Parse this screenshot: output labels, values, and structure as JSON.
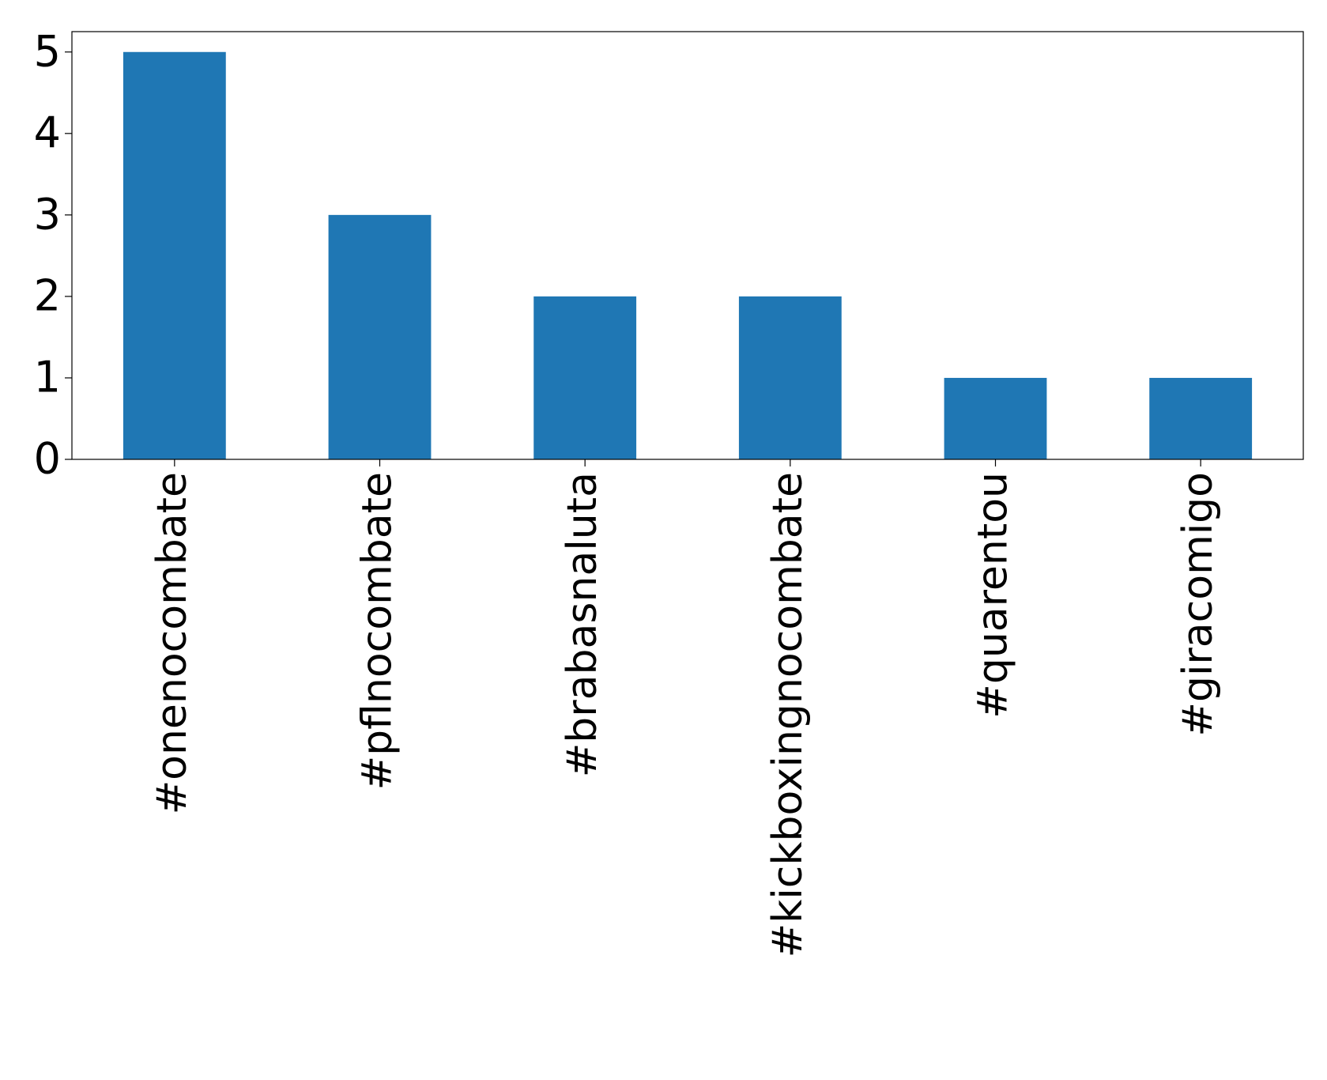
{
  "chart_data": {
    "type": "bar",
    "categories": [
      "#onenocombate",
      "#pflnocombate",
      "#brabasnaluta",
      "#kickboxingnocombate",
      "#quarentou",
      "#giracomigo"
    ],
    "values": [
      5,
      3,
      2,
      2,
      1,
      1
    ],
    "color": "#1f77b4",
    "ylim": [
      0,
      5.25
    ],
    "yticks": [
      0,
      1,
      2,
      3,
      4,
      5
    ],
    "grid": false
  }
}
